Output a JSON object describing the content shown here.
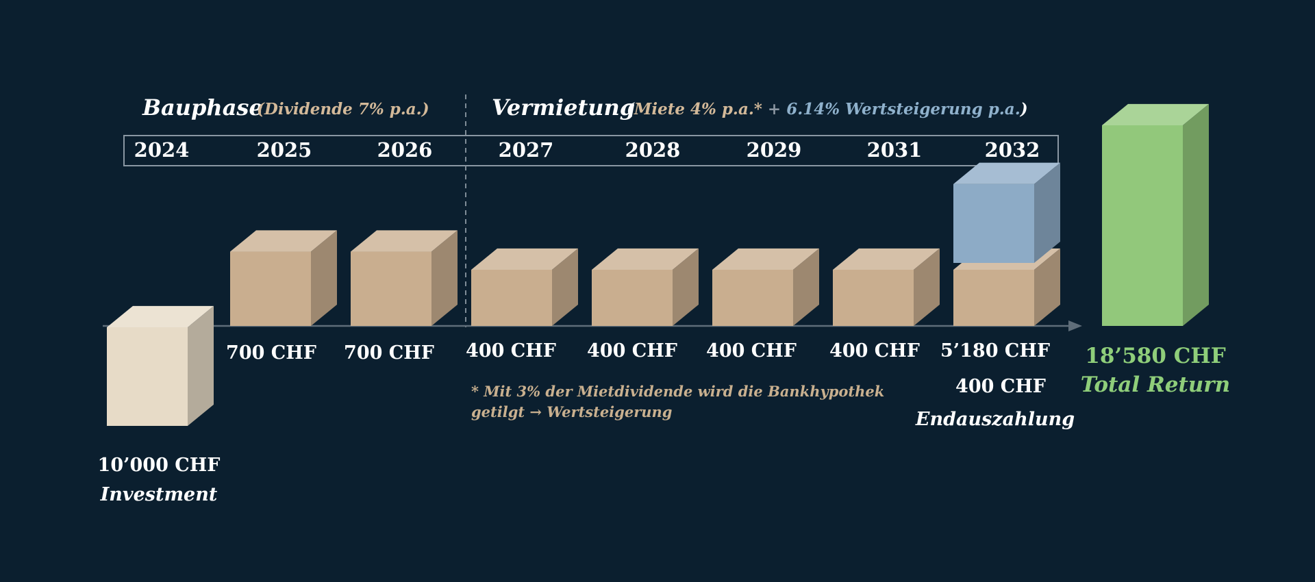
{
  "phases": {
    "bau": {
      "title": "Bauphase",
      "subtitle": "(Dividende 7% p.a.)"
    },
    "vermietung": {
      "title": "Vermietung",
      "sub_open": "(",
      "sub_rent": "Miete 4% p.a.*",
      "sub_plus": " + ",
      "sub_growth": "6.14% Wertsteigerung p.a.",
      "sub_close": ")"
    }
  },
  "years": [
    "2024",
    "2025",
    "2026",
    "2027",
    "2028",
    "2029",
    "2031",
    "2032"
  ],
  "labels": {
    "investment_amount": "10’000 CHF",
    "investment_caption": "Investment",
    "final_value": "5’180 CHF",
    "final_dividend": "400 CHF",
    "final_caption": "Endauszahlung",
    "total_amount": "18’580 CHF",
    "total_caption": "Total Return"
  },
  "note": "* Mit 3% der Mietdividende wird die Bankhypothek getilgt → Wertsteigerung",
  "colors": {
    "background": "#0b1f2f",
    "investment": "#e7dbc7",
    "dividend": "#c9ae8f",
    "value_growth": "#8dabc6",
    "total": "#92c87b"
  },
  "chart_data": {
    "type": "bar",
    "title": "",
    "categories": [
      "2024",
      "2025",
      "2026",
      "2027",
      "2028",
      "2029",
      "2031",
      "2032"
    ],
    "series": [
      {
        "values": [
          10000,
          700,
          700,
          400,
          400,
          400,
          400,
          400
        ],
        "value_labels": [
          "10’000 CHF",
          "700 CHF",
          "700 CHF",
          "400 CHF",
          "400 CHF",
          "400 CHF",
          "400 CHF",
          "400 CHF"
        ]
      },
      {
        "values": [
          0,
          0,
          0,
          0,
          0,
          0,
          0,
          5180
        ],
        "value_labels": [
          "",
          "",
          "",
          "",
          "",
          "",
          "",
          "5’180 CHF"
        ]
      }
    ],
    "total": {
      "value": 18580,
      "label": "18’580 CHF",
      "caption": "Total Return"
    }
  }
}
